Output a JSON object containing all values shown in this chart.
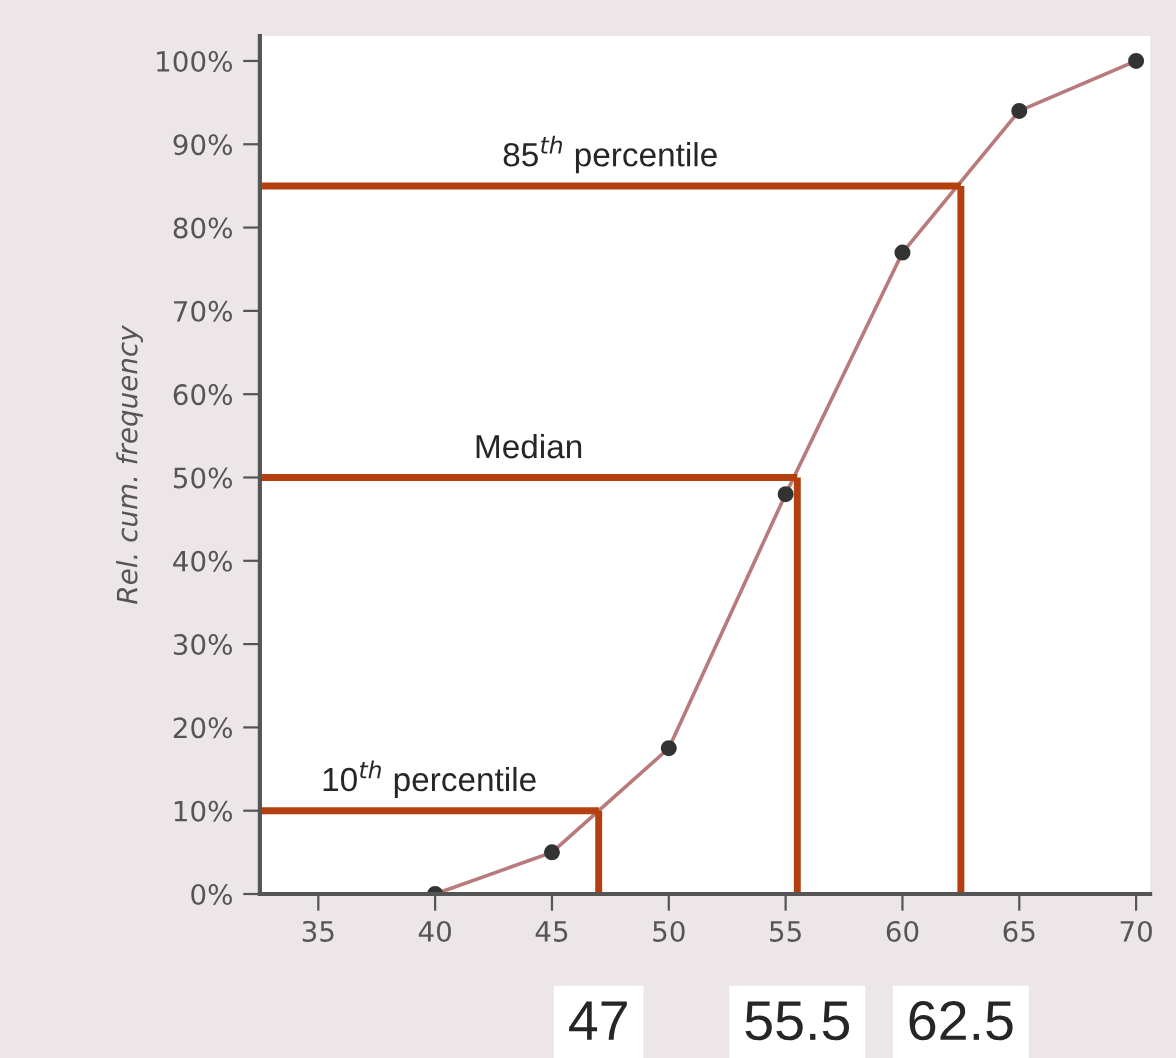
{
  "chart_data": {
    "type": "line",
    "ylabel": "Rel. cum. frequency",
    "x": [
      40,
      45,
      50,
      55,
      60,
      65,
      70
    ],
    "series": [
      {
        "color": "#b87a7a",
        "values": [
          0,
          5,
          17.5,
          48,
          77,
          94,
          100
        ]
      }
    ],
    "marker": "circle",
    "line_style": "solid",
    "xlim": [
      32.5,
      70.6
    ],
    "xticks": [
      35,
      40,
      45,
      50,
      55,
      60,
      65,
      70
    ],
    "ylim": [
      0,
      103
    ],
    "yticks": [
      {
        "value": 0,
        "label": "0%"
      },
      {
        "value": 10,
        "label": "10%"
      },
      {
        "value": 20,
        "label": "20%"
      },
      {
        "value": 30,
        "label": "30%"
      },
      {
        "value": 40,
        "label": "40%"
      },
      {
        "value": 50,
        "label": "50%"
      },
      {
        "value": 60,
        "label": "60%"
      },
      {
        "value": 70,
        "label": "70%"
      },
      {
        "value": 80,
        "label": "80%"
      },
      {
        "value": 90,
        "label": "90%"
      },
      {
        "value": 100,
        "label": "100%"
      }
    ],
    "ref_lines": [
      {
        "axis": "y",
        "value": 10,
        "label": "10$^{th}$ percentile",
        "color": "#b5400f"
      },
      {
        "axis": "y",
        "value": 50,
        "label": "Median",
        "color": "#b5400f"
      },
      {
        "axis": "y",
        "value": 85,
        "label": "85$^{th}$ percentile",
        "color": "#b5400f"
      },
      {
        "axis": "x",
        "value": 47,
        "label": "47",
        "color": "#b5400f"
      },
      {
        "axis": "x",
        "value": 55.5,
        "label": "55.5",
        "color": "#b5400f"
      },
      {
        "axis": "x",
        "value": 62.5,
        "label": "62.5",
        "color": "#b5400f"
      }
    ],
    "grid": false,
    "legend": false
  }
}
